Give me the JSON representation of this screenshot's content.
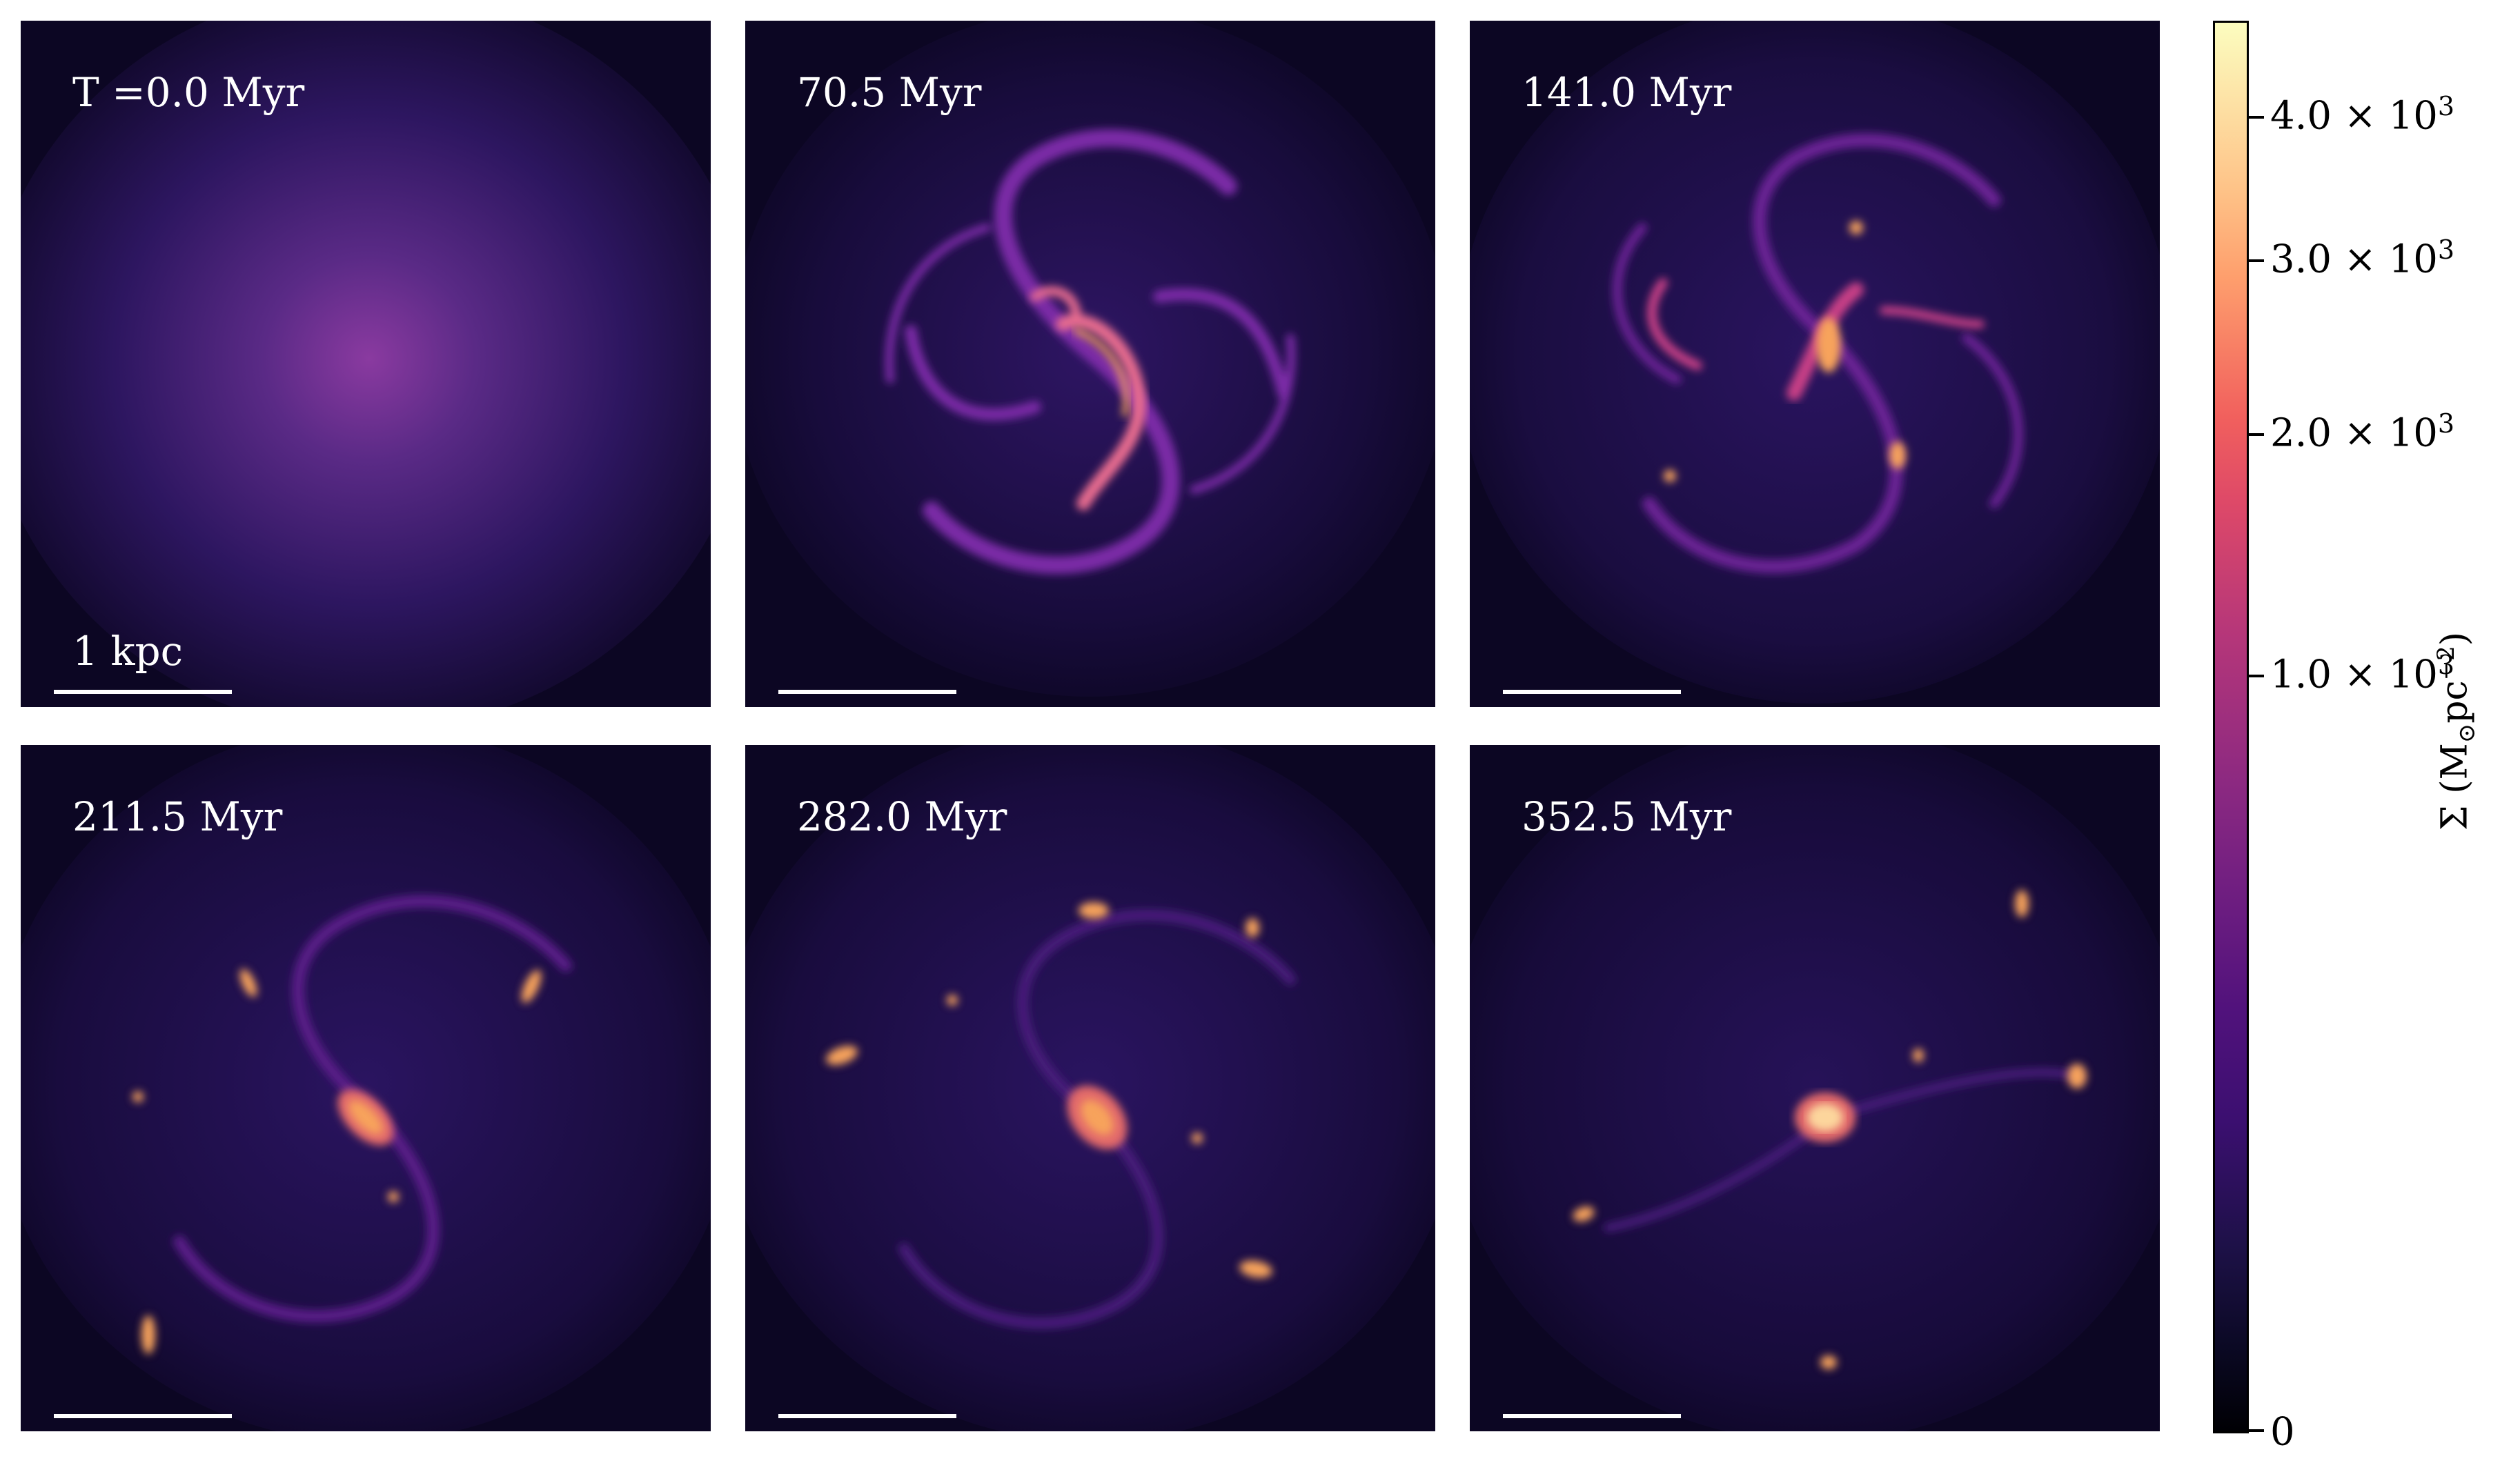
{
  "figure": {
    "panels": [
      {
        "time_label": "T =0.0 Myr",
        "scale_label": "1 kpc"
      },
      {
        "time_label": "70.5 Myr",
        "scale_label": ""
      },
      {
        "time_label": "141.0 Myr",
        "scale_label": ""
      },
      {
        "time_label": "211.5 Myr",
        "scale_label": ""
      },
      {
        "time_label": "282.0 Myr",
        "scale_label": ""
      },
      {
        "time_label": "352.5 Myr",
        "scale_label": ""
      }
    ],
    "colorbar": {
      "label_symbol": "Σ (M",
      "label_sun": "⊙",
      "label_unit": "pc",
      "label_exp": "−2",
      "label_close": ")",
      "colormap": "magma",
      "ticks": [
        {
          "mantissa": "4.0 × 10",
          "exp": "3"
        },
        {
          "mantissa": "3.0 × 10",
          "exp": "3"
        },
        {
          "mantissa": "2.0 × 10",
          "exp": "3"
        },
        {
          "mantissa": "1.0 × 10",
          "exp": "3"
        },
        {
          "mantissa": "0",
          "exp": ""
        }
      ]
    },
    "colors": {
      "background": "#0c0623",
      "arm": "#7a2aa6",
      "bright": "#f7a35c",
      "core": "#fcd59c"
    }
  }
}
